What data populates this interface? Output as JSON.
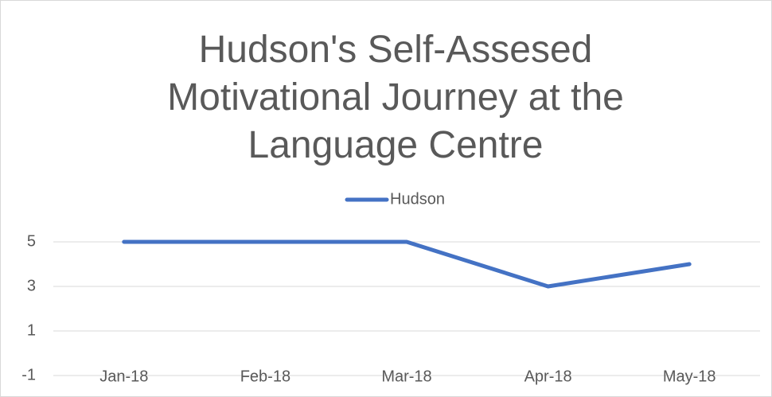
{
  "chart_data": {
    "type": "line",
    "title": [
      "Hudson's Self-Assesed",
      "Motivational Journey at the",
      "Language Centre"
    ],
    "categories": [
      "Jan-18",
      "Feb-18",
      "Mar-18",
      "Apr-18",
      "May-18"
    ],
    "series": [
      {
        "name": "Hudson",
        "color": "#4472c4",
        "values": [
          5,
          5,
          5,
          3,
          4
        ]
      }
    ],
    "ylim": [
      -1,
      5
    ],
    "yticks": [
      -1,
      1,
      3,
      5
    ],
    "grid": true,
    "legend": "top"
  }
}
